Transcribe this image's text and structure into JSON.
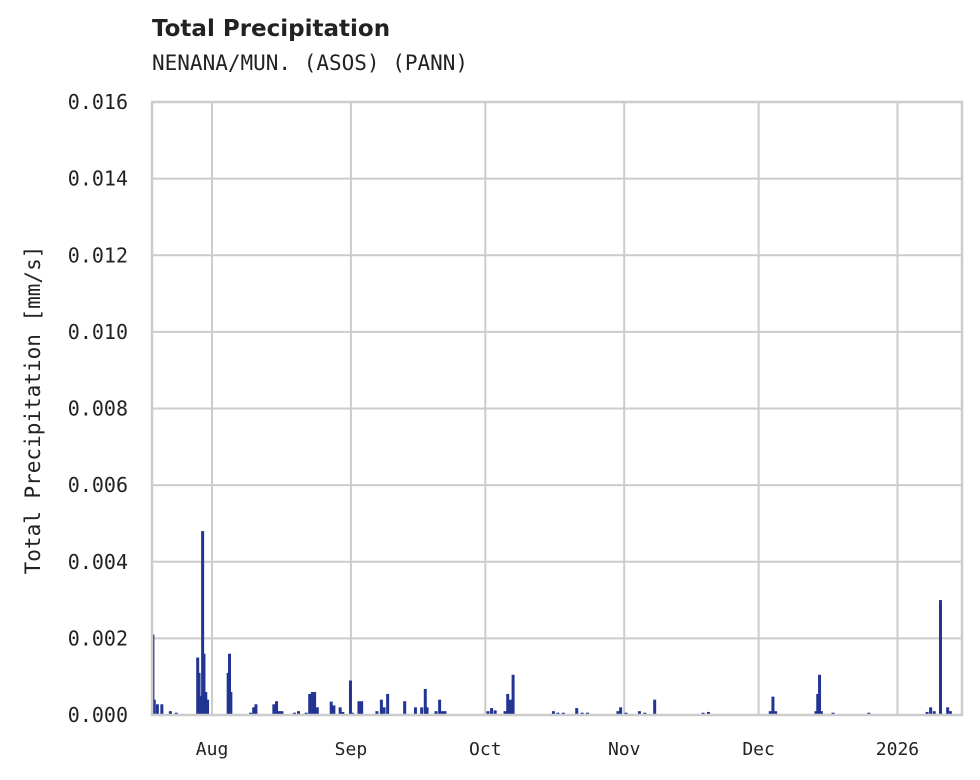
{
  "header": {
    "title": "Total Precipitation",
    "subtitle": "NENANA/MUN. (ASOS) (PANN)"
  },
  "chart_data": {
    "type": "bar",
    "title": "Total Precipitation",
    "subtitle": "NENANA/MUN. (ASOS) (PANN)",
    "xlabel": "",
    "ylabel": "Total Precipitation [mm/s]",
    "ylim": [
      0,
      0.016
    ],
    "yticks": [
      "0.000",
      "0.002",
      "0.004",
      "0.006",
      "0.008",
      "0.010",
      "0.012",
      "0.014",
      "0.016"
    ],
    "xticks": [
      "Aug",
      "Sep",
      "Oct",
      "Nov",
      "Dec",
      "2026"
    ],
    "xtick_day_offsets": [
      0,
      31,
      61,
      92,
      122,
      153
    ],
    "x_range_day_offsets": [
      -13.4,
      167.4
    ],
    "grid": true,
    "legend": null,
    "color": "#233592",
    "series": [
      {
        "name": "Total Precipitation",
        "x_unit": "days since Aug 1 2025",
        "points": [
          [
            -13.2,
            0.0021
          ],
          [
            -12.9,
            0.0004
          ],
          [
            -12.2,
            0.00028
          ],
          [
            -11.2,
            0.00028
          ],
          [
            -9.3,
            0.0001
          ],
          [
            -8.0,
            6e-05
          ],
          [
            -3.2,
            0.0015
          ],
          [
            -2.9,
            0.0011
          ],
          [
            -2.6,
            0.0005
          ],
          [
            -2.1,
            0.0048
          ],
          [
            -1.8,
            0.0016
          ],
          [
            -1.4,
            0.0006
          ],
          [
            -1.0,
            0.0004
          ],
          [
            3.6,
            0.0011
          ],
          [
            3.9,
            0.0016
          ],
          [
            4.2,
            0.0006
          ],
          [
            8.6,
            6e-05
          ],
          [
            9.3,
            0.0002
          ],
          [
            9.8,
            0.00028
          ],
          [
            13.8,
            0.00028
          ],
          [
            14.4,
            0.00036
          ],
          [
            15.0,
            0.0001
          ],
          [
            15.6,
            0.0001
          ],
          [
            18.4,
            6e-05
          ],
          [
            19.3,
            0.0001
          ],
          [
            21.0,
            6e-05
          ],
          [
            21.8,
            0.00055
          ],
          [
            22.4,
            0.0006
          ],
          [
            22.9,
            0.0006
          ],
          [
            23.5,
            0.0002
          ],
          [
            26.6,
            0.00035
          ],
          [
            27.2,
            0.00025
          ],
          [
            28.6,
            0.0002
          ],
          [
            29.2,
            8e-05
          ],
          [
            30.9,
            0.0009
          ],
          [
            31.3,
            6e-05
          ],
          [
            32.8,
            0.00036
          ],
          [
            33.4,
            0.00036
          ],
          [
            36.8,
            0.0001
          ],
          [
            37.8,
            0.0004
          ],
          [
            38.4,
            0.0002
          ],
          [
            39.2,
            0.00055
          ],
          [
            43.0,
            0.00036
          ],
          [
            45.4,
            0.0002
          ],
          [
            46.8,
            0.0002
          ],
          [
            47.6,
            0.00068
          ],
          [
            48.0,
            0.0002
          ],
          [
            50.0,
            0.0001
          ],
          [
            50.8,
            0.0004
          ],
          [
            51.4,
            0.0001
          ],
          [
            52.0,
            0.0001
          ],
          [
            61.6,
            0.0001
          ],
          [
            62.4,
            0.00018
          ],
          [
            63.2,
            0.00012
          ],
          [
            65.4,
            0.0001
          ],
          [
            66.0,
            0.00055
          ],
          [
            66.6,
            0.0004
          ],
          [
            67.2,
            0.00105
          ],
          [
            76.2,
            0.0001
          ],
          [
            77.2,
            6e-05
          ],
          [
            78.4,
            6e-05
          ],
          [
            81.4,
            0.00018
          ],
          [
            82.6,
            6e-05
          ],
          [
            83.8,
            6e-05
          ],
          [
            90.6,
            0.0001
          ],
          [
            91.2,
            0.0002
          ],
          [
            92.4,
            6e-05
          ],
          [
            95.4,
            0.0001
          ],
          [
            96.6,
            6e-05
          ],
          [
            98.8,
            0.0004
          ],
          [
            109.6,
            6e-05
          ],
          [
            110.8,
            8e-05
          ],
          [
            124.6,
            0.0001
          ],
          [
            125.2,
            0.00048
          ],
          [
            125.8,
            0.0001
          ],
          [
            134.8,
            0.0001
          ],
          [
            135.2,
            0.00055
          ],
          [
            135.6,
            0.00105
          ],
          [
            136.0,
            0.0001
          ],
          [
            138.6,
            6e-05
          ],
          [
            146.6,
            6e-05
          ],
          [
            159.6,
            8e-05
          ],
          [
            160.4,
            0.0002
          ],
          [
            161.2,
            0.0001
          ],
          [
            162.6,
            0.003
          ],
          [
            164.2,
            0.0002
          ],
          [
            164.8,
            0.0001
          ]
        ]
      }
    ]
  }
}
